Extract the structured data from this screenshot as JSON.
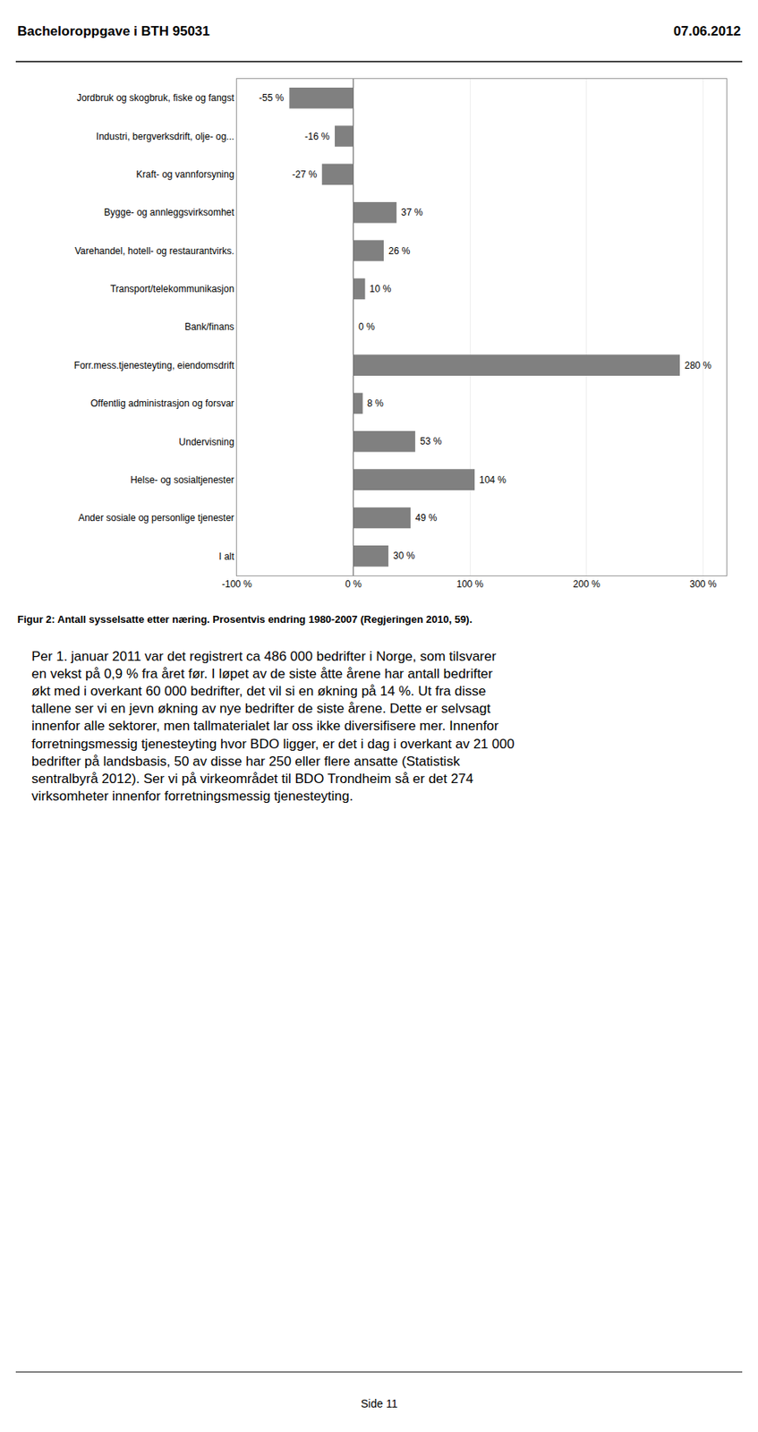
{
  "chart_data": {
    "type": "bar",
    "orientation": "horizontal",
    "title": "Figur 2: Antall sysselsatte etter næring. Prosentvis endring 1980-2007 (Regjeringen 2010, 59).",
    "categories": [
      "Jordbruk og skogbruk, fiske og fangst",
      "Industri, bergverksdrift, olje- og...",
      "Kraft- og vannforsyning",
      "Bygge- og annleggsvirksomhet",
      "Varehandel, hotell- og restaurantvirks.",
      "Transport/telekommunikasjon",
      "Bank/finans",
      "Forr.mess.tjenesteyting, eiendomsdrift",
      "Offentlig administrasjon og forsvar",
      "Undervisning",
      "Helse- og sosialtjenester",
      "Ander sosiale og personlige tjenester",
      "I alt"
    ],
    "values": [
      -55,
      -16,
      -27,
      37,
      26,
      10,
      0,
      280,
      8,
      53,
      104,
      49,
      30
    ],
    "value_labels": [
      "-55 %",
      "-16 %",
      "-27 %",
      "37 %",
      "26 %",
      "10 %",
      "0 %",
      "280 %",
      "8 %",
      "53 %",
      "104 %",
      "49 %",
      "30 %"
    ],
    "data_labels": true,
    "color": "#808080",
    "xlim": [
      -100,
      320
    ],
    "xticks": [
      {
        "value": -100,
        "label": "-100 %"
      },
      {
        "value": 0,
        "label": "0 %"
      },
      {
        "value": 100,
        "label": "100 %"
      },
      {
        "value": 200,
        "label": "200 %"
      },
      {
        "value": 300,
        "label": "300 %"
      }
    ],
    "grid": true,
    "annotations": [
      "Bacheloroppgave i BTH 95031",
      "07.06.2012",
      "Per 1. januar 2011 var det registrert ca 486 000 bedrifter i Norge, som tilsvarer\nen vekst på 0,9 % fra året før. I løpet av de siste åtte årene har antall bedrifter\nøkt med i overkant 60 000 bedrifter, det vil si en økning på 14 %. Ut fra disse\ntallene ser vi en jevn økning av nye bedrifter de siste årene. Dette er selvsagt\ninnenfor alle sektorer, men tallmaterialet lar oss ikke diversifisere mer. Innenfor\nforretningsmessig tjenesteyting hvor BDO ligger, er det i dag i overkant av 21 000\nbedrifter på landsbasis, 50 av disse har 250 eller flere ansatte (Statistisk\nsentralbyrå 2012). Ser vi på virkeområdet til BDO Trondheim så er det 274\nvirksomheter innenfor forretningsmessig tjenesteyting.",
      "Side 11"
    ]
  }
}
